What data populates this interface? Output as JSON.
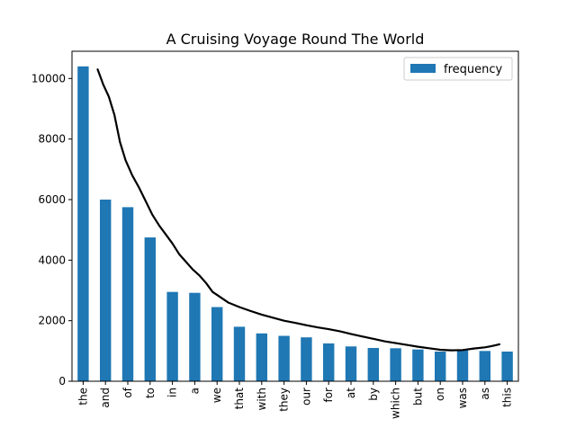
{
  "chart_data": {
    "type": "bar",
    "title": "A Cruising Voyage Round The World",
    "xlabel": "",
    "ylabel": "",
    "categories": [
      "the",
      "and",
      "of",
      "to",
      "in",
      "a",
      "we",
      "that",
      "with",
      "they",
      "our",
      "for",
      "at",
      "by",
      "which",
      "but",
      "on",
      "was",
      "as",
      "this"
    ],
    "series": [
      {
        "name": "frequency",
        "values": [
          10400,
          6000,
          5750,
          4750,
          2950,
          2920,
          2450,
          1800,
          1580,
          1500,
          1450,
          1250,
          1150,
          1100,
          1090,
          1050,
          980,
          1050,
          1000,
          980
        ]
      }
    ],
    "fit_line": {
      "x": [
        0.65,
        0.9,
        1.15,
        1.4,
        1.65,
        1.9,
        2.2,
        2.5,
        2.8,
        3.1,
        3.4,
        3.7,
        4.0,
        4.3,
        4.6,
        4.9,
        5.2,
        5.5,
        5.8,
        6.1,
        6.5,
        7.0,
        7.5,
        8.0,
        8.5,
        9.0,
        9.5,
        10.0,
        10.5,
        11.0,
        11.5,
        12.0,
        12.5,
        13.0,
        13.5,
        14.0,
        14.5,
        15.0,
        15.5,
        16.0,
        16.5,
        17.0,
        17.5,
        18.0,
        18.3,
        18.65
      ],
      "y": [
        10300,
        9800,
        9400,
        8800,
        7900,
        7300,
        6800,
        6400,
        5950,
        5500,
        5150,
        4850,
        4550,
        4200,
        3950,
        3700,
        3500,
        3250,
        2950,
        2800,
        2600,
        2450,
        2320,
        2200,
        2100,
        2000,
        1930,
        1850,
        1780,
        1720,
        1650,
        1560,
        1480,
        1400,
        1320,
        1260,
        1200,
        1140,
        1090,
        1040,
        1020,
        1030,
        1080,
        1120,
        1160,
        1220
      ]
    },
    "ylim": [
      0,
      10900
    ],
    "yticks": [
      0,
      2000,
      4000,
      6000,
      8000,
      10000
    ],
    "bar_color": "#1f77b4",
    "line_color": "#000000",
    "grid": false,
    "legend_position": "top-right"
  }
}
